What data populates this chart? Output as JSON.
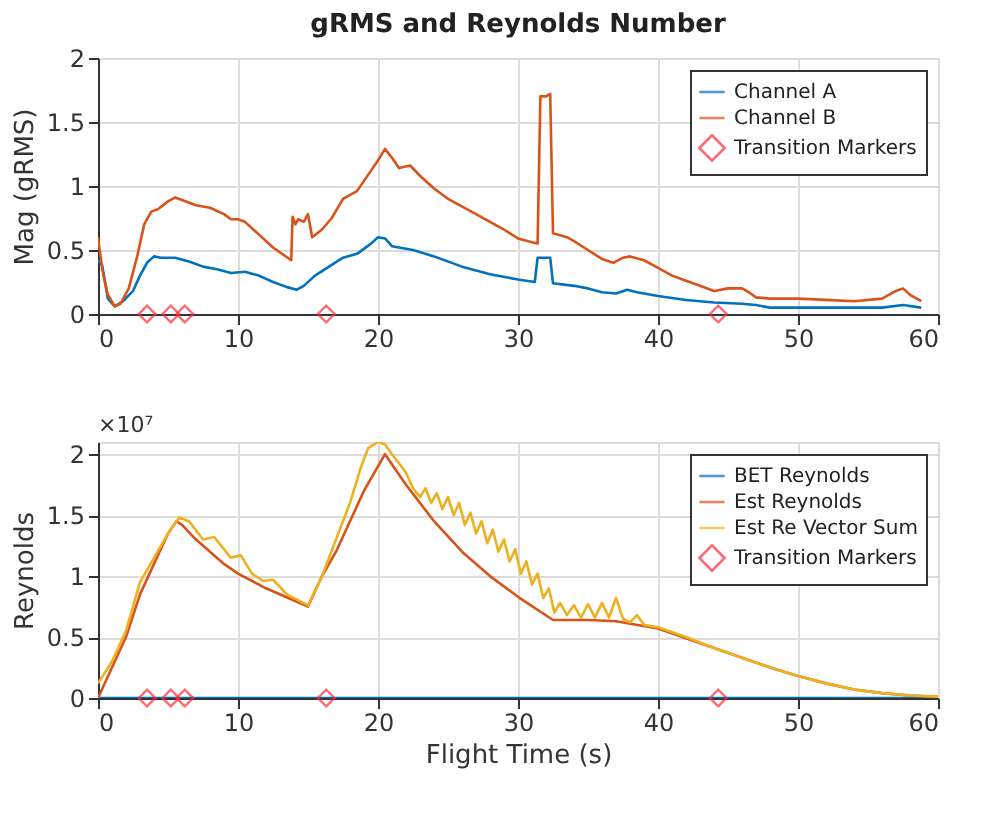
{
  "chart_data": [
    {
      "type": "line",
      "title": "gRMS and Reynolds Number",
      "ylabel": "Mag (gRMS)",
      "xlim": [
        0,
        60
      ],
      "xticks": [
        0,
        10,
        20,
        30,
        40,
        50,
        60
      ],
      "ylim": [
        0,
        2
      ],
      "yticks": [
        0,
        0.5,
        1,
        1.5,
        2
      ],
      "grid": true,
      "legend": "top right",
      "line_style": "solid",
      "series": [
        {
          "name": "Channel A",
          "color": "#0072bd",
          "x": [
            0,
            0.3,
            0.7,
            1.2,
            1.8,
            2.5,
            3,
            3.5,
            4,
            4.5,
            5.5,
            6.5,
            7.5,
            8.5,
            9.5,
            10.5,
            11.5,
            12.5,
            13.5,
            14.2,
            14.7,
            15.5,
            16.5,
            17.5,
            18.5,
            19.5,
            20,
            20.5,
            21,
            22.5,
            24,
            26,
            28,
            30,
            31.2,
            31.4,
            32.3,
            32.5,
            34,
            35,
            36,
            37,
            37.8,
            38.5,
            40,
            42,
            44,
            46,
            47,
            48,
            50,
            54,
            56,
            57.5,
            58.8
          ],
          "values": [
            0.42,
            0.38,
            0.12,
            0.06,
            0.1,
            0.18,
            0.3,
            0.4,
            0.45,
            0.44,
            0.44,
            0.41,
            0.37,
            0.35,
            0.32,
            0.33,
            0.3,
            0.25,
            0.21,
            0.19,
            0.22,
            0.3,
            0.37,
            0.44,
            0.47,
            0.55,
            0.6,
            0.59,
            0.53,
            0.5,
            0.45,
            0.37,
            0.31,
            0.27,
            0.25,
            0.44,
            0.44,
            0.24,
            0.22,
            0.2,
            0.17,
            0.16,
            0.19,
            0.17,
            0.14,
            0.11,
            0.09,
            0.08,
            0.07,
            0.05,
            0.05,
            0.05,
            0.05,
            0.07,
            0.05
          ]
        },
        {
          "name": "Channel B",
          "color": "#d95319",
          "x": [
            0,
            0.3,
            0.7,
            1.2,
            1.6,
            2.2,
            2.8,
            3.3,
            3.8,
            4.3,
            5,
            5.5,
            6,
            7,
            8,
            9,
            9.5,
            10,
            10.5,
            11.5,
            12.5,
            13.8,
            13.9,
            14.1,
            14.3,
            14.7,
            15,
            15.3,
            16,
            16.7,
            17.5,
            18.5,
            19.5,
            20,
            20.5,
            21,
            21.5,
            22.3,
            23,
            24,
            25,
            27,
            29,
            30,
            31,
            31.4,
            31.6,
            32,
            32.3,
            32.5,
            33.5,
            34,
            35,
            36,
            36.8,
            37.5,
            38,
            39,
            40,
            41,
            42,
            43,
            44,
            45,
            46,
            46.5,
            47,
            48,
            50,
            52,
            54,
            56,
            57,
            57.5,
            58,
            58.8
          ],
          "values": [
            0.6,
            0.35,
            0.15,
            0.06,
            0.08,
            0.2,
            0.45,
            0.7,
            0.8,
            0.82,
            0.88,
            0.91,
            0.89,
            0.85,
            0.83,
            0.78,
            0.74,
            0.74,
            0.72,
            0.62,
            0.52,
            0.42,
            0.76,
            0.7,
            0.74,
            0.72,
            0.78,
            0.6,
            0.66,
            0.75,
            0.9,
            0.96,
            1.12,
            1.2,
            1.29,
            1.22,
            1.14,
            1.16,
            1.08,
            0.98,
            0.9,
            0.78,
            0.66,
            0.59,
            0.56,
            0.55,
            1.7,
            1.7,
            1.72,
            0.63,
            0.6,
            0.57,
            0.5,
            0.43,
            0.4,
            0.44,
            0.45,
            0.42,
            0.36,
            0.3,
            0.26,
            0.22,
            0.18,
            0.2,
            0.2,
            0.17,
            0.13,
            0.12,
            0.12,
            0.11,
            0.1,
            0.12,
            0.18,
            0.2,
            0.15,
            0.1
          ]
        },
        {
          "name": "Transition Markers",
          "type": "scatter",
          "marker": "diamond",
          "color": "#ff2a3a",
          "x": [
            3.5,
            5.2,
            6.2,
            16.3,
            44.3
          ],
          "values": [
            0,
            0,
            0,
            0,
            0
          ]
        }
      ]
    },
    {
      "type": "line",
      "xlabel": "Flight Time (s)",
      "ylabel": "Reynolds",
      "xlim": [
        0,
        60
      ],
      "xticks": [
        0,
        10,
        20,
        30,
        40,
        50,
        60
      ],
      "ylim": [
        0,
        2.1
      ],
      "yticks": [
        0,
        0.5,
        1,
        1.5,
        2
      ],
      "grid": true,
      "legend": "top right",
      "line_style": "solid",
      "annotations": [
        "×10⁷"
      ],
      "series": [
        {
          "name": "BET Reynolds",
          "color": "#0072bd",
          "x": [
            0,
            10,
            20,
            30,
            40,
            50,
            60
          ],
          "values": [
            0,
            0,
            0,
            0,
            0,
            0,
            0
          ]
        },
        {
          "name": "Est Reynolds",
          "color": "#d95319",
          "x": [
            0,
            1,
            2,
            3,
            4,
            5,
            5.6,
            6,
            7,
            8,
            9,
            10,
            12,
            14,
            15,
            16,
            17,
            18,
            19,
            20.5,
            22,
            24,
            26,
            28,
            30,
            32.5,
            35,
            37,
            40,
            42,
            44,
            46,
            48,
            50,
            52,
            54,
            56,
            58,
            60
          ],
          "values": [
            0,
            0.25,
            0.5,
            0.85,
            1.1,
            1.35,
            1.45,
            1.42,
            1.3,
            1.2,
            1.1,
            1.02,
            0.9,
            0.8,
            0.75,
            1.0,
            1.2,
            1.45,
            1.7,
            2.0,
            1.75,
            1.45,
            1.2,
            1.0,
            0.83,
            0.64,
            0.64,
            0.63,
            0.57,
            0.49,
            0.41,
            0.33,
            0.25,
            0.18,
            0.12,
            0.07,
            0.04,
            0.02,
            0.01
          ]
        },
        {
          "name": "Est Re Vector Sum",
          "color": "#edb120",
          "x": [
            0,
            1,
            2,
            3,
            4,
            5,
            5.8,
            6.5,
            7.5,
            8.3,
            9,
            9.5,
            10.2,
            11,
            11.8,
            12.5,
            13.5,
            15,
            16,
            17,
            18,
            18.8,
            19.3,
            20,
            20.5,
            21,
            22,
            22.5,
            23,
            23.4,
            23.8,
            24.2,
            24.6,
            25,
            25.4,
            25.8,
            26.2,
            26.6,
            27,
            27.4,
            27.8,
            28.2,
            28.6,
            29,
            29.4,
            29.8,
            30.2,
            30.6,
            31,
            31.4,
            31.8,
            32.2,
            32.6,
            33,
            33.5,
            34,
            34.5,
            35,
            35.5,
            36,
            36.5,
            37,
            37.5,
            38,
            38.5,
            39,
            40,
            42,
            44,
            46,
            48,
            50,
            52,
            54,
            56,
            58,
            60
          ],
          "values": [
            0.12,
            0.3,
            0.55,
            0.95,
            1.15,
            1.35,
            1.48,
            1.45,
            1.3,
            1.32,
            1.22,
            1.15,
            1.17,
            1.02,
            0.96,
            0.97,
            0.85,
            0.76,
            1.0,
            1.3,
            1.6,
            1.9,
            2.05,
            2.1,
            2.08,
            2.0,
            1.85,
            1.72,
            1.65,
            1.72,
            1.6,
            1.68,
            1.55,
            1.65,
            1.5,
            1.6,
            1.42,
            1.52,
            1.35,
            1.45,
            1.27,
            1.38,
            1.2,
            1.3,
            1.12,
            1.22,
            1.02,
            1.12,
            0.93,
            1.02,
            0.82,
            0.9,
            0.7,
            0.78,
            0.68,
            0.76,
            0.66,
            0.77,
            0.66,
            0.78,
            0.66,
            0.82,
            0.65,
            0.62,
            0.68,
            0.6,
            0.58,
            0.5,
            0.41,
            0.33,
            0.25,
            0.18,
            0.12,
            0.07,
            0.04,
            0.02,
            0.01
          ]
        },
        {
          "name": "Transition Markers",
          "type": "scatter",
          "marker": "diamond",
          "color": "#ff2a3a",
          "x": [
            3.5,
            5.2,
            6.2,
            16.3,
            44.3
          ],
          "values": [
            0,
            0,
            0,
            0,
            0
          ]
        }
      ]
    }
  ]
}
